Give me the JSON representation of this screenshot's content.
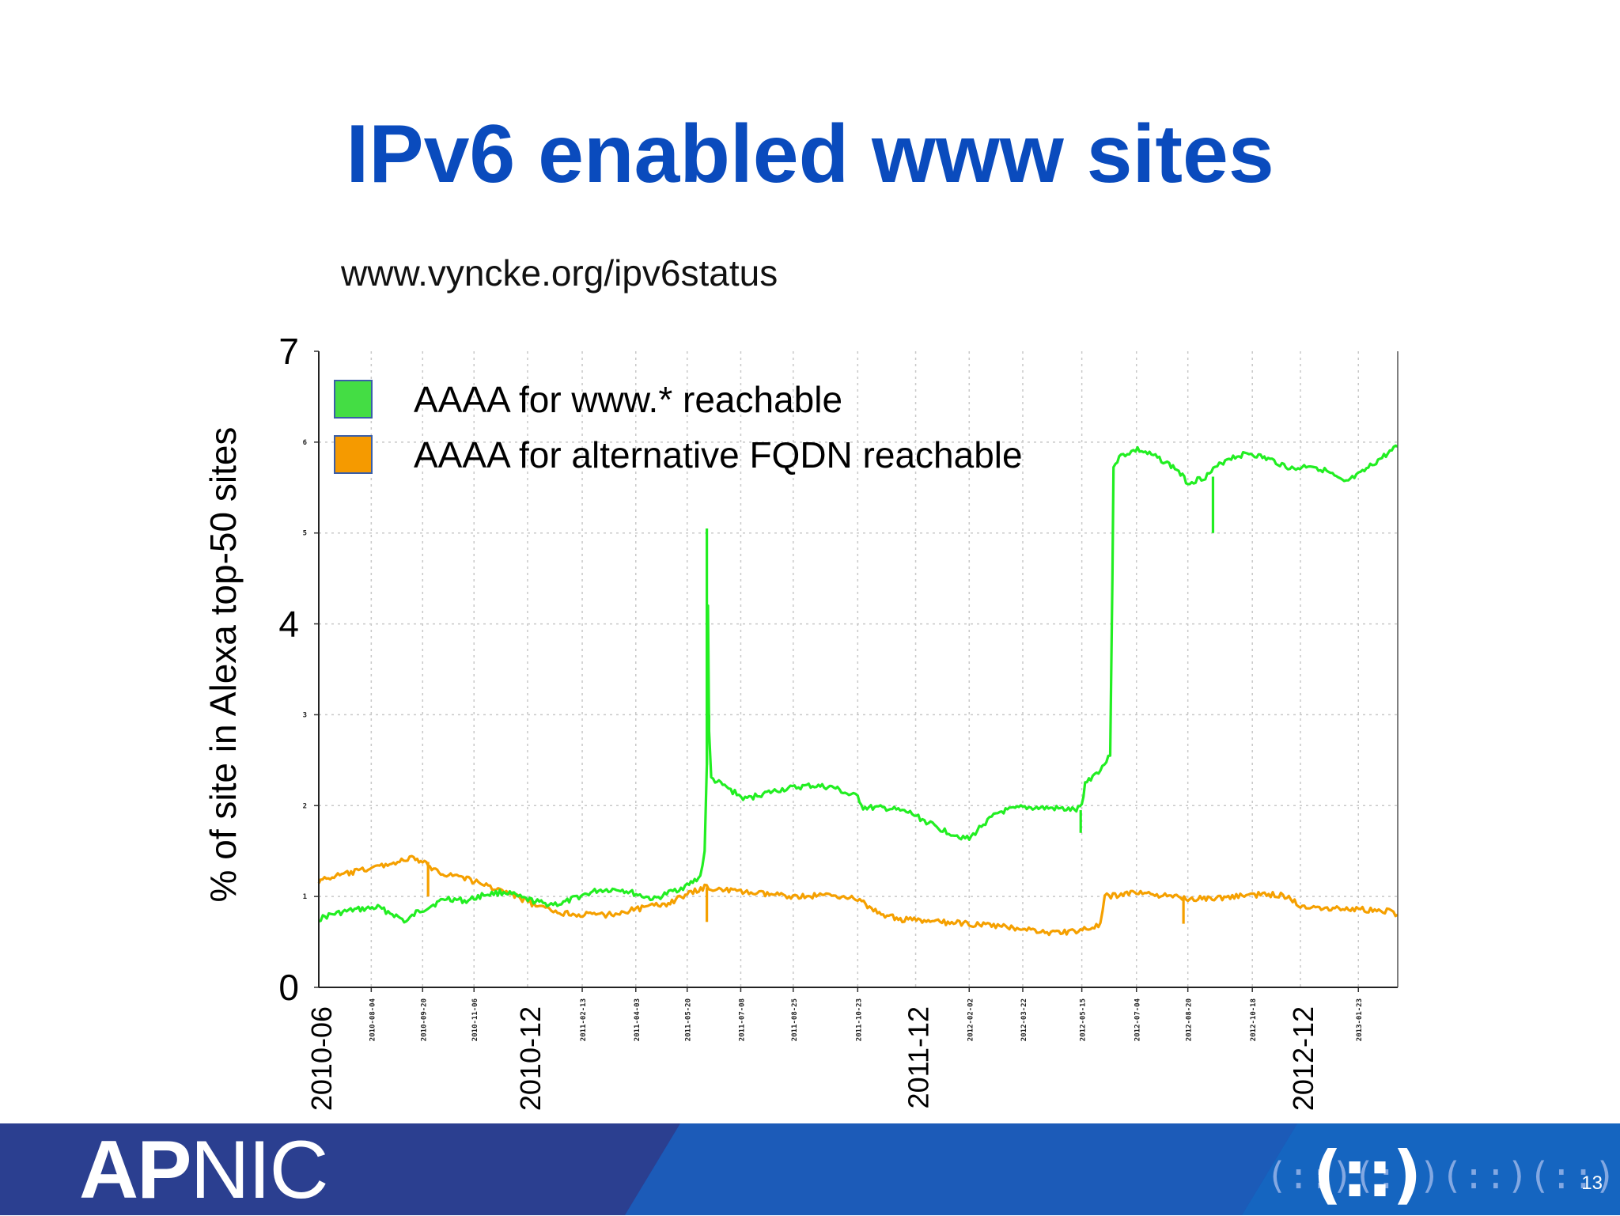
{
  "slide": {
    "title": "IPv6 enabled www sites",
    "source": "www.vyncke.org/ipv6status",
    "logo": {
      "part1": "AP",
      "part2": "NIC"
    },
    "page_number": "13"
  },
  "colors": {
    "title": "#0a4bbd",
    "footer_dark": "#2c3f8f",
    "footer_light": "#1565c0",
    "green": "#22ee22",
    "orange": "#f5a000",
    "legend_green": "#44dd44",
    "legend_orange": "#f59a00"
  },
  "chart_data": {
    "type": "line",
    "ylabel": "% of site in Alexa top-50 sites",
    "ylim": [
      0,
      7
    ],
    "y_ticks_large": [
      "0",
      "4",
      "7"
    ],
    "y_ticks_small": [
      "1",
      "2",
      "3",
      "5",
      "6"
    ],
    "xlim": [
      "2010-06-17",
      "2013-02-28"
    ],
    "x_ticks_small": [
      "2010-08-04",
      "2010-09-20",
      "2010-11-06",
      "2011-02-13",
      "2011-04-03",
      "2011-05-20",
      "2011-07-08",
      "2011-08-25",
      "2011-10-23",
      "2012-02-02",
      "2012-03-22",
      "2012-05-15",
      "2012-07-04",
      "2012-08-20",
      "2012-10-18",
      "2013-01-23"
    ],
    "x_ticks_large": [
      {
        "label": "2010-06",
        "date": "2010-06-17"
      },
      {
        "label": "2010-12",
        "date": "2010-12-25"
      },
      {
        "label": "2011-12",
        "date": "2011-12-15"
      },
      {
        "label": "2012-12",
        "date": "2012-12-01"
      }
    ],
    "grid": true,
    "legend_position": "top-left",
    "series": [
      {
        "name": "AAAA for www.* reachable",
        "color": "#22ee22",
        "points": [
          [
            "2010-06-17",
            0.75
          ],
          [
            "2010-06-28",
            0.8
          ],
          [
            "2010-07-18",
            0.85
          ],
          [
            "2010-08-10",
            0.88
          ],
          [
            "2010-08-25",
            0.8
          ],
          [
            "2010-09-05",
            0.72
          ],
          [
            "2010-09-14",
            0.82
          ],
          [
            "2010-09-28",
            0.9
          ],
          [
            "2010-10-12",
            0.98
          ],
          [
            "2010-10-30",
            0.95
          ],
          [
            "2010-11-15",
            1.02
          ],
          [
            "2010-12-05",
            1.05
          ],
          [
            "2010-12-20",
            0.98
          ],
          [
            "2011-01-10",
            0.92
          ],
          [
            "2011-01-25",
            0.92
          ],
          [
            "2011-02-10",
            1.0
          ],
          [
            "2011-02-28",
            1.07
          ],
          [
            "2011-03-20",
            1.08
          ],
          [
            "2011-04-05",
            1.02
          ],
          [
            "2011-04-20",
            0.97
          ],
          [
            "2011-05-05",
            1.05
          ],
          [
            "2011-05-20",
            1.12
          ],
          [
            "2011-06-01",
            1.22
          ],
          [
            "2011-06-05",
            1.5
          ],
          [
            "2011-06-07",
            2.45
          ],
          [
            "2011-06-08",
            4.2
          ],
          [
            "2011-06-09",
            2.8
          ],
          [
            "2011-06-11",
            2.3
          ],
          [
            "2011-06-25",
            2.2
          ],
          [
            "2011-07-12",
            2.07
          ],
          [
            "2011-07-25",
            2.12
          ],
          [
            "2011-08-15",
            2.18
          ],
          [
            "2011-09-10",
            2.22
          ],
          [
            "2011-10-01",
            2.2
          ],
          [
            "2011-10-15",
            2.12
          ],
          [
            "2011-10-23",
            2.1
          ],
          [
            "2011-10-28",
            1.98
          ],
          [
            "2011-11-20",
            1.97
          ],
          [
            "2011-12-10",
            1.92
          ],
          [
            "2012-01-05",
            1.75
          ],
          [
            "2012-01-20",
            1.68
          ],
          [
            "2012-02-02",
            1.63
          ],
          [
            "2012-02-15",
            1.8
          ],
          [
            "2012-03-01",
            1.93
          ],
          [
            "2012-03-22",
            1.98
          ],
          [
            "2012-04-20",
            1.97
          ],
          [
            "2012-05-10",
            1.95
          ],
          [
            "2012-05-15",
            2.0
          ],
          [
            "2012-05-18",
            2.25
          ],
          [
            "2012-06-01",
            2.4
          ],
          [
            "2012-06-10",
            2.55
          ],
          [
            "2012-06-12",
            4.5
          ],
          [
            "2012-06-13",
            5.75
          ],
          [
            "2012-06-20",
            5.85
          ],
          [
            "2012-07-05",
            5.92
          ],
          [
            "2012-07-25",
            5.82
          ],
          [
            "2012-08-10",
            5.7
          ],
          [
            "2012-08-20",
            5.55
          ],
          [
            "2012-09-05",
            5.62
          ],
          [
            "2012-09-25",
            5.82
          ],
          [
            "2012-10-15",
            5.88
          ],
          [
            "2012-11-05",
            5.8
          ],
          [
            "2012-11-25",
            5.7
          ],
          [
            "2012-12-10",
            5.75
          ],
          [
            "2012-12-25",
            5.68
          ],
          [
            "2013-01-10",
            5.55
          ],
          [
            "2013-01-25",
            5.65
          ],
          [
            "2013-02-10",
            5.8
          ],
          [
            "2013-02-28",
            5.95
          ]
        ],
        "spikes": [
          [
            "2011-06-07",
            5.05
          ],
          [
            "2011-06-09",
            3.0
          ],
          [
            "2012-05-14",
            1.7
          ],
          [
            "2012-09-12",
            5.0
          ]
        ]
      },
      {
        "name": "AAAA for alternative FQDN reachable",
        "color": "#f5a000",
        "points": [
          [
            "2010-06-17",
            1.17
          ],
          [
            "2010-07-01",
            1.22
          ],
          [
            "2010-07-20",
            1.27
          ],
          [
            "2010-08-10",
            1.33
          ],
          [
            "2010-08-28",
            1.38
          ],
          [
            "2010-09-10",
            1.42
          ],
          [
            "2010-09-20",
            1.38
          ],
          [
            "2010-09-30",
            1.3
          ],
          [
            "2010-10-10",
            1.25
          ],
          [
            "2010-10-25",
            1.22
          ],
          [
            "2010-11-10",
            1.15
          ],
          [
            "2010-11-28",
            1.08
          ],
          [
            "2010-12-15",
            1.0
          ],
          [
            "2011-01-05",
            0.88
          ],
          [
            "2011-01-25",
            0.82
          ],
          [
            "2011-02-15",
            0.8
          ],
          [
            "2011-03-10",
            0.8
          ],
          [
            "2011-04-03",
            0.86
          ],
          [
            "2011-05-01",
            0.92
          ],
          [
            "2011-05-20",
            1.02
          ],
          [
            "2011-06-05",
            1.1
          ],
          [
            "2011-06-20",
            1.08
          ],
          [
            "2011-07-08",
            1.05
          ],
          [
            "2011-08-05",
            1.02
          ],
          [
            "2011-09-01",
            1.0
          ],
          [
            "2011-10-01",
            1.02
          ],
          [
            "2011-10-23",
            0.97
          ],
          [
            "2011-11-10",
            0.82
          ],
          [
            "2011-12-01",
            0.75
          ],
          [
            "2012-01-01",
            0.72
          ],
          [
            "2012-02-02",
            0.7
          ],
          [
            "2012-03-01",
            0.67
          ],
          [
            "2012-03-22",
            0.65
          ],
          [
            "2012-04-15",
            0.6
          ],
          [
            "2012-05-10",
            0.62
          ],
          [
            "2012-06-01",
            0.68
          ],
          [
            "2012-06-05",
            1.0
          ],
          [
            "2012-06-20",
            1.02
          ],
          [
            "2012-07-04",
            1.05
          ],
          [
            "2012-08-01",
            1.0
          ],
          [
            "2012-08-20",
            0.98
          ],
          [
            "2012-09-15",
            0.98
          ],
          [
            "2012-10-18",
            1.02
          ],
          [
            "2012-11-15",
            1.02
          ],
          [
            "2012-12-01",
            0.9
          ],
          [
            "2012-12-20",
            0.88
          ],
          [
            "2013-01-23",
            0.86
          ],
          [
            "2013-02-20",
            0.84
          ],
          [
            "2013-02-28",
            0.8
          ]
        ],
        "spikes": [
          [
            "2010-09-25",
            1.0
          ],
          [
            "2011-06-07",
            0.72
          ],
          [
            "2012-08-16",
            0.7
          ]
        ]
      }
    ]
  }
}
